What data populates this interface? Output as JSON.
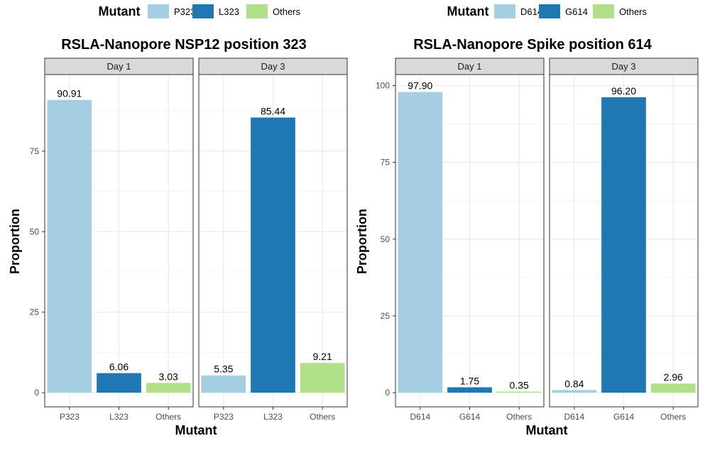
{
  "colors": {
    "light_blue": "#a6cee3",
    "dark_blue": "#1f78b4",
    "light_green": "#b2df8a",
    "strip": "#d9d9d9",
    "grid": "#ebebeb"
  },
  "chart_data": [
    {
      "type": "bar",
      "title": "RSLA-Nanopore NSP12 position 323",
      "xlabel": "Mutant",
      "ylabel": "Proportion",
      "ylim": [
        0,
        100
      ],
      "yticks": [
        0,
        25,
        50,
        75
      ],
      "grid": true,
      "legend": {
        "title": "Mutant",
        "position": "top",
        "entries": [
          "P323",
          "L323",
          "Others"
        ]
      },
      "categories": [
        "P323",
        "L323",
        "Others"
      ],
      "facets": [
        {
          "label": "Day 1",
          "values": [
            90.91,
            6.06,
            3.03
          ],
          "labels": [
            "90.91",
            "6.06",
            "3.03"
          ]
        },
        {
          "label": "Day 3",
          "values": [
            5.35,
            85.44,
            9.21
          ],
          "labels": [
            "5.35",
            "85.44",
            "9.21"
          ]
        }
      ]
    },
    {
      "type": "bar",
      "title": "RSLA-Nanopore Spike position 614",
      "xlabel": "Mutant",
      "ylabel": "Proportion",
      "ylim": [
        0,
        100
      ],
      "yticks": [
        0,
        25,
        50,
        75,
        100
      ],
      "grid": true,
      "legend": {
        "title": "Mutant",
        "position": "top",
        "entries": [
          "D614",
          "G614",
          "Others"
        ]
      },
      "categories": [
        "D614",
        "G614",
        "Others"
      ],
      "facets": [
        {
          "label": "Day 1",
          "values": [
            97.9,
            1.75,
            0.35
          ],
          "labels": [
            "97.90",
            "1.75",
            "0.35"
          ]
        },
        {
          "label": "Day 3",
          "values": [
            0.84,
            96.2,
            2.96
          ],
          "labels": [
            "0.84",
            "96.20",
            "2.96"
          ]
        }
      ]
    }
  ]
}
